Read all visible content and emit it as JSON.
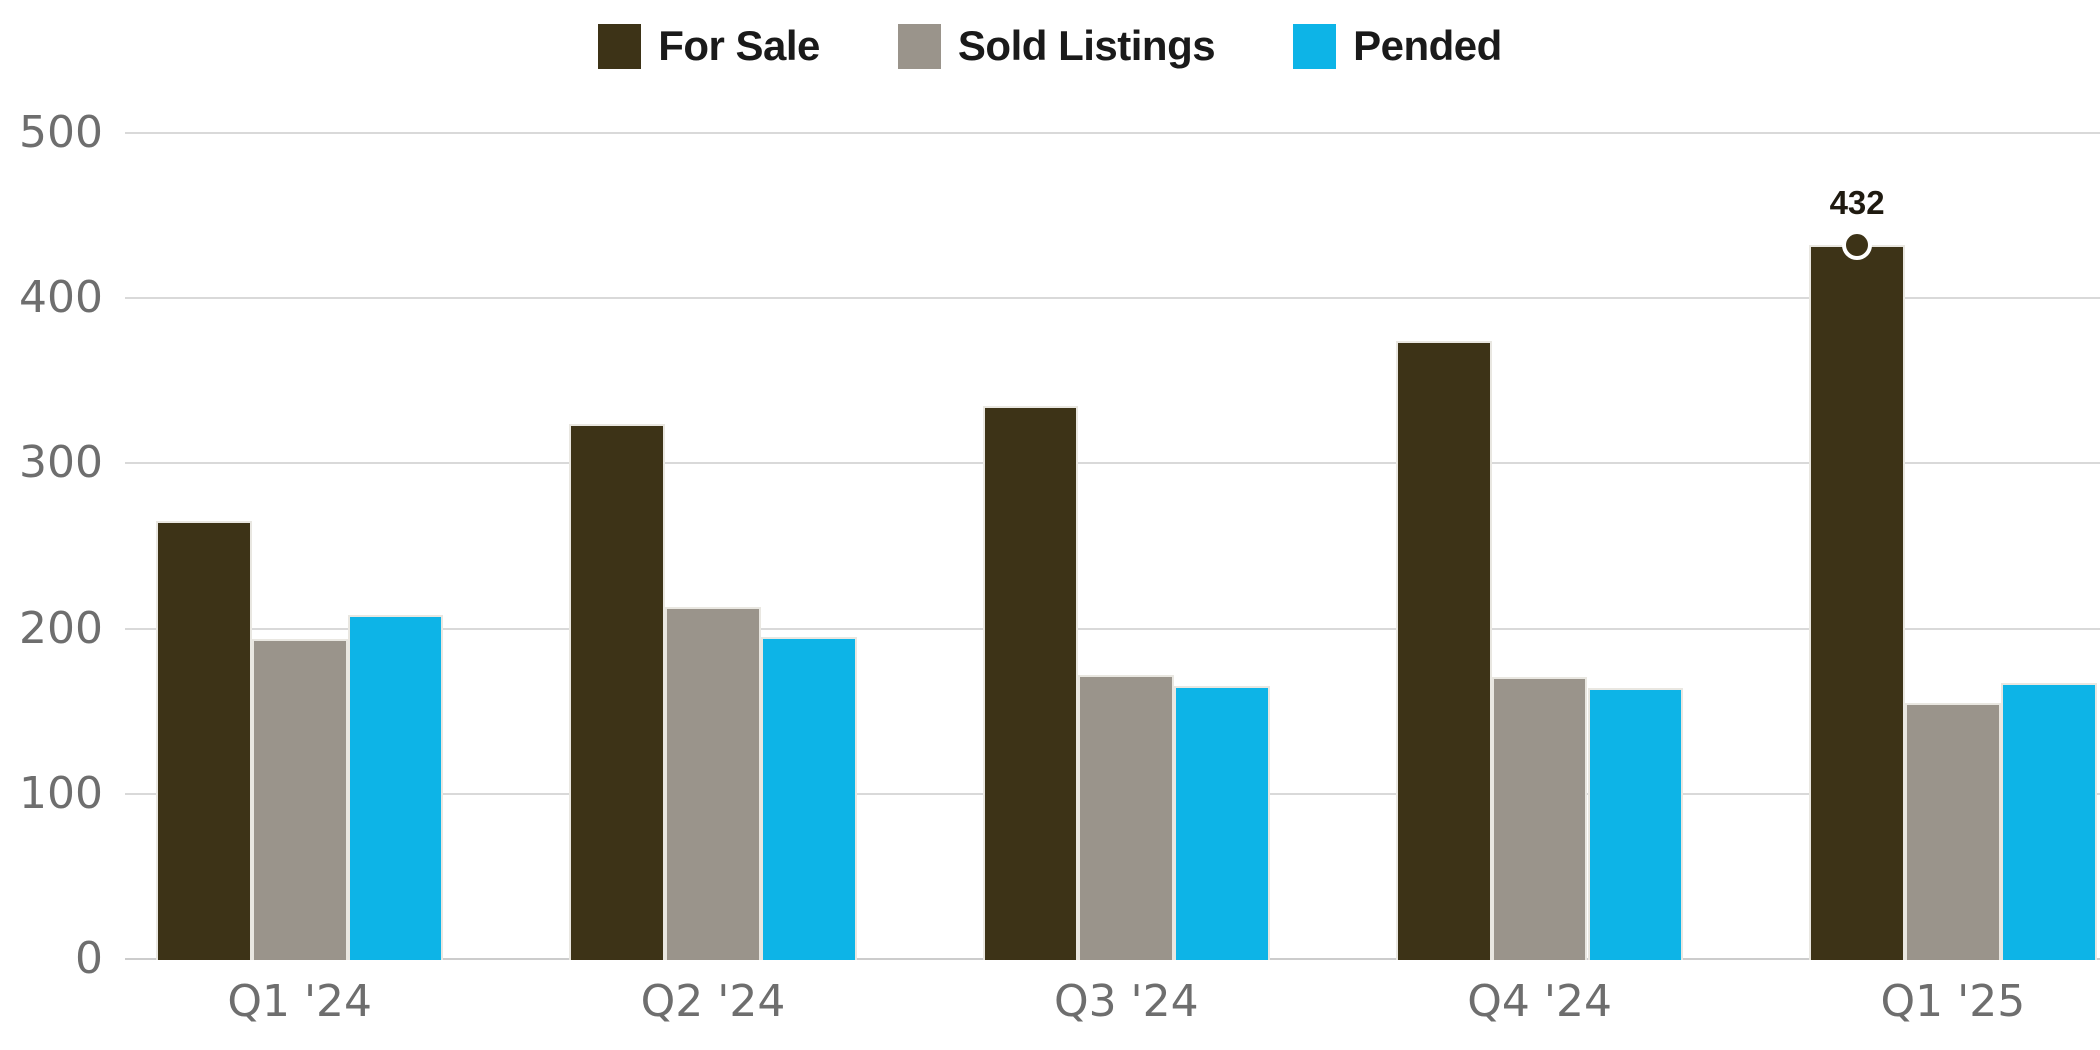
{
  "chart_data": {
    "type": "bar",
    "categories": [
      "Q1 '24",
      "Q2 '24",
      "Q3 '24",
      "Q4 '24",
      "Q1 '25"
    ],
    "series": [
      {
        "name": "For Sale",
        "color": "#3d3317",
        "values": [
          265,
          324,
          335,
          374,
          432
        ]
      },
      {
        "name": "Sold Listings",
        "color": "#9a948b",
        "values": [
          194,
          213,
          172,
          171,
          155
        ]
      },
      {
        "name": "Pended",
        "color": "#0db4e7",
        "values": [
          208,
          195,
          165,
          164,
          167
        ]
      }
    ],
    "yticks": [
      0,
      100,
      200,
      300,
      400,
      500
    ],
    "ylim": [
      0,
      500
    ],
    "xlabel": "",
    "ylabel": "",
    "grid": true,
    "legend_position": "top",
    "annotations": [
      {
        "series": "For Sale",
        "category": "Q1 '25",
        "label": "432",
        "marker": "dot"
      }
    ],
    "colors": {
      "axis_label": "#6e6e6e",
      "gridline": "#d9d9d9",
      "baseline": "#cccccc",
      "legend_text": "#1a1a1a",
      "annotation_text": "#1f1a10",
      "marker_stroke": "#ffffff",
      "background": "#ffffff"
    }
  }
}
